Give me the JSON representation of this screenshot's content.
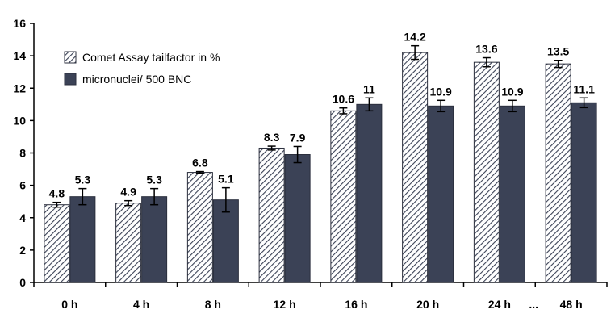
{
  "chart_data": {
    "type": "bar",
    "categories": [
      "0 h",
      "4 h",
      "8 h",
      "12 h",
      "16 h",
      "20 h",
      "24 h",
      "48 h"
    ],
    "break_marker": "...",
    "series": [
      {
        "name": "Comet Assay tailfactor in %",
        "values": [
          4.8,
          4.9,
          6.8,
          8.3,
          10.6,
          14.2,
          13.6,
          13.5
        ],
        "value_labels": [
          "4.8",
          "4.9",
          "6.8",
          "8.3",
          "10.6",
          "14.2",
          "13.6",
          "13.5"
        ],
        "errors": [
          0.15,
          0.15,
          0.05,
          0.12,
          0.18,
          0.42,
          0.28,
          0.22
        ],
        "fill": "hatched",
        "color": "#3b4256"
      },
      {
        "name": "micronuclei/ 500 BNC",
        "values": [
          5.3,
          5.3,
          5.1,
          7.9,
          11.0,
          10.9,
          10.9,
          11.1
        ],
        "value_labels": [
          "5.3",
          "5.3",
          "5.1",
          "7.9",
          "11",
          "10.9",
          "10.9",
          "11.1"
        ],
        "errors": [
          0.5,
          0.5,
          0.75,
          0.5,
          0.4,
          0.35,
          0.35,
          0.3
        ],
        "fill": "solid",
        "color": "#3b4256"
      }
    ],
    "title": "",
    "xlabel": "",
    "ylabel": "",
    "ylim": [
      0,
      16
    ],
    "yticks": [
      0,
      2,
      4,
      6,
      8,
      10,
      12,
      14,
      16
    ],
    "grid": false,
    "legend_position": "top-left"
  }
}
